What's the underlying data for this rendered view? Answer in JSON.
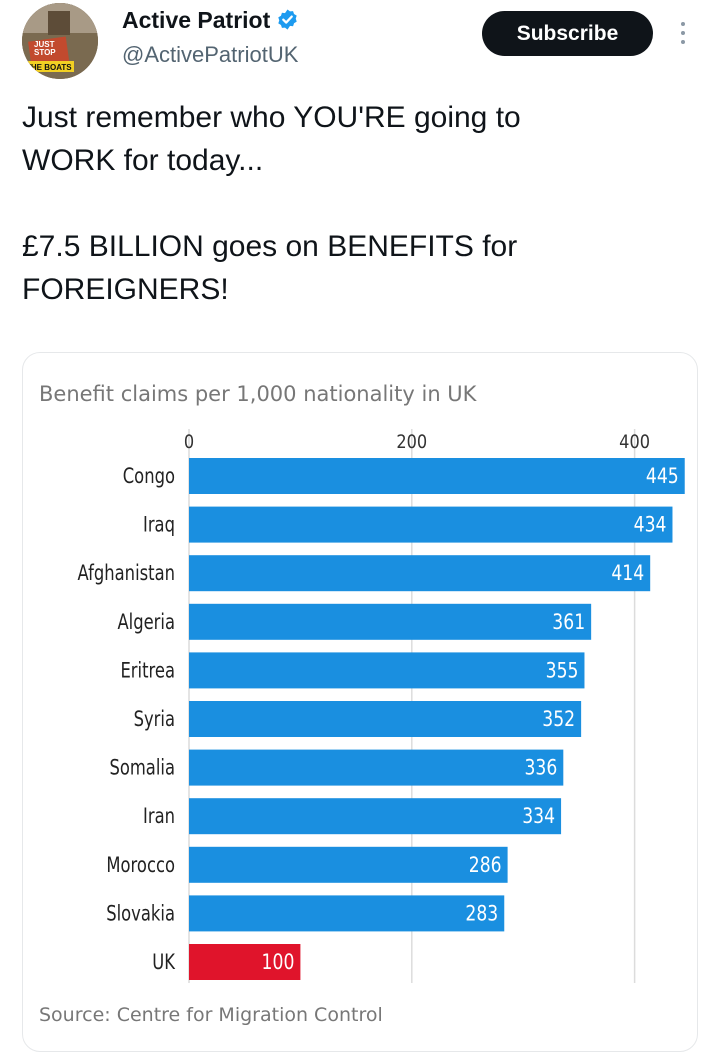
{
  "post": {
    "author_name": "Active Patriot",
    "author_handle": "@ActivePatriotUK",
    "avatar_text": [
      "JUST",
      "STOP",
      "THE BOATS"
    ],
    "subscribe_label": "Subscribe",
    "text_lines": [
      "Just remember who YOU'RE going to",
      "WORK for today..."
    ],
    "text_lines_2": [
      "£7.5 BILLION goes on BENEFITS for",
      "FOREIGNERS!"
    ],
    "colors": {
      "verified": "#1d9bf0",
      "button_bg": "#0f1419"
    }
  },
  "chart_data": {
    "type": "bar",
    "orientation": "horizontal",
    "title": "Benefit claims per 1,000 nationality in UK",
    "source": "Source: Centre for Migration Control",
    "categories": [
      "Congo",
      "Iraq",
      "Afghanistan",
      "Algeria",
      "Eritrea",
      "Syria",
      "Somalia",
      "Iran",
      "Morocco",
      "Slovakia",
      "UK"
    ],
    "values": [
      445,
      434,
      414,
      361,
      355,
      352,
      336,
      334,
      286,
      283,
      100
    ],
    "data_labels": [
      "445",
      "434",
      "414",
      "361",
      "355",
      "352",
      "336",
      "334",
      "286",
      "283",
      "100"
    ],
    "xticks": [
      0,
      200,
      400
    ],
    "xtick_labels": [
      "0",
      "200",
      "400"
    ],
    "xlim": [
      0,
      450
    ],
    "grid": true,
    "bar_colors": {
      "default": "#1a8fe0",
      "highlight": "#e0142b",
      "highlight_category": "UK"
    }
  }
}
